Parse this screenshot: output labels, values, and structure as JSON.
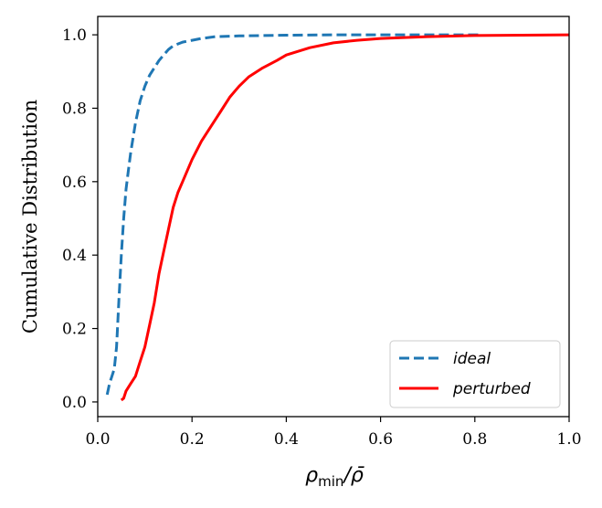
{
  "chart_data": {
    "type": "line",
    "xlabel": {
      "main": "ρ",
      "sub": "min",
      "tail": "/ρ̄"
    },
    "ylabel": "Cumulative Distribution",
    "xlim": [
      0.0,
      1.0
    ],
    "ylim": [
      -0.04,
      1.05
    ],
    "xticks": [
      "0.0",
      "0.2",
      "0.4",
      "0.6",
      "0.8",
      "1.0"
    ],
    "yticks": [
      "0.0",
      "0.2",
      "0.4",
      "0.6",
      "0.8",
      "1.0"
    ],
    "grid": false,
    "legend_position": "lower-right",
    "series": [
      {
        "name": "ideal",
        "color": "#1f77b4",
        "dash": "dashed",
        "x": [
          0.02,
          0.025,
          0.03,
          0.035,
          0.04,
          0.045,
          0.05,
          0.055,
          0.06,
          0.065,
          0.07,
          0.08,
          0.09,
          0.1,
          0.11,
          0.12,
          0.13,
          0.14,
          0.15,
          0.16,
          0.18,
          0.2,
          0.22,
          0.25,
          0.3,
          0.35,
          0.4,
          0.5,
          0.6,
          0.7,
          0.8,
          0.81
        ],
        "y": [
          0.02,
          0.05,
          0.07,
          0.09,
          0.15,
          0.28,
          0.4,
          0.5,
          0.58,
          0.63,
          0.68,
          0.76,
          0.82,
          0.86,
          0.89,
          0.91,
          0.93,
          0.945,
          0.96,
          0.97,
          0.98,
          0.985,
          0.99,
          0.995,
          0.997,
          0.998,
          0.999,
          1.0,
          1.0,
          1.0,
          1.0,
          1.0
        ]
      },
      {
        "name": "perturbed",
        "color": "#ff0000",
        "dash": "solid",
        "x": [
          0.05,
          0.055,
          0.06,
          0.065,
          0.07,
          0.075,
          0.08,
          0.09,
          0.1,
          0.11,
          0.12,
          0.13,
          0.14,
          0.15,
          0.16,
          0.17,
          0.18,
          0.2,
          0.22,
          0.24,
          0.26,
          0.28,
          0.3,
          0.32,
          0.35,
          0.38,
          0.4,
          0.45,
          0.5,
          0.55,
          0.6,
          0.7,
          0.8,
          0.9,
          1.0
        ],
        "y": [
          0.005,
          0.01,
          0.03,
          0.04,
          0.05,
          0.06,
          0.07,
          0.11,
          0.15,
          0.21,
          0.27,
          0.35,
          0.41,
          0.47,
          0.53,
          0.57,
          0.6,
          0.66,
          0.71,
          0.75,
          0.79,
          0.83,
          0.86,
          0.885,
          0.91,
          0.93,
          0.945,
          0.965,
          0.978,
          0.985,
          0.99,
          0.995,
          0.998,
          0.999,
          1.0
        ]
      }
    ]
  }
}
